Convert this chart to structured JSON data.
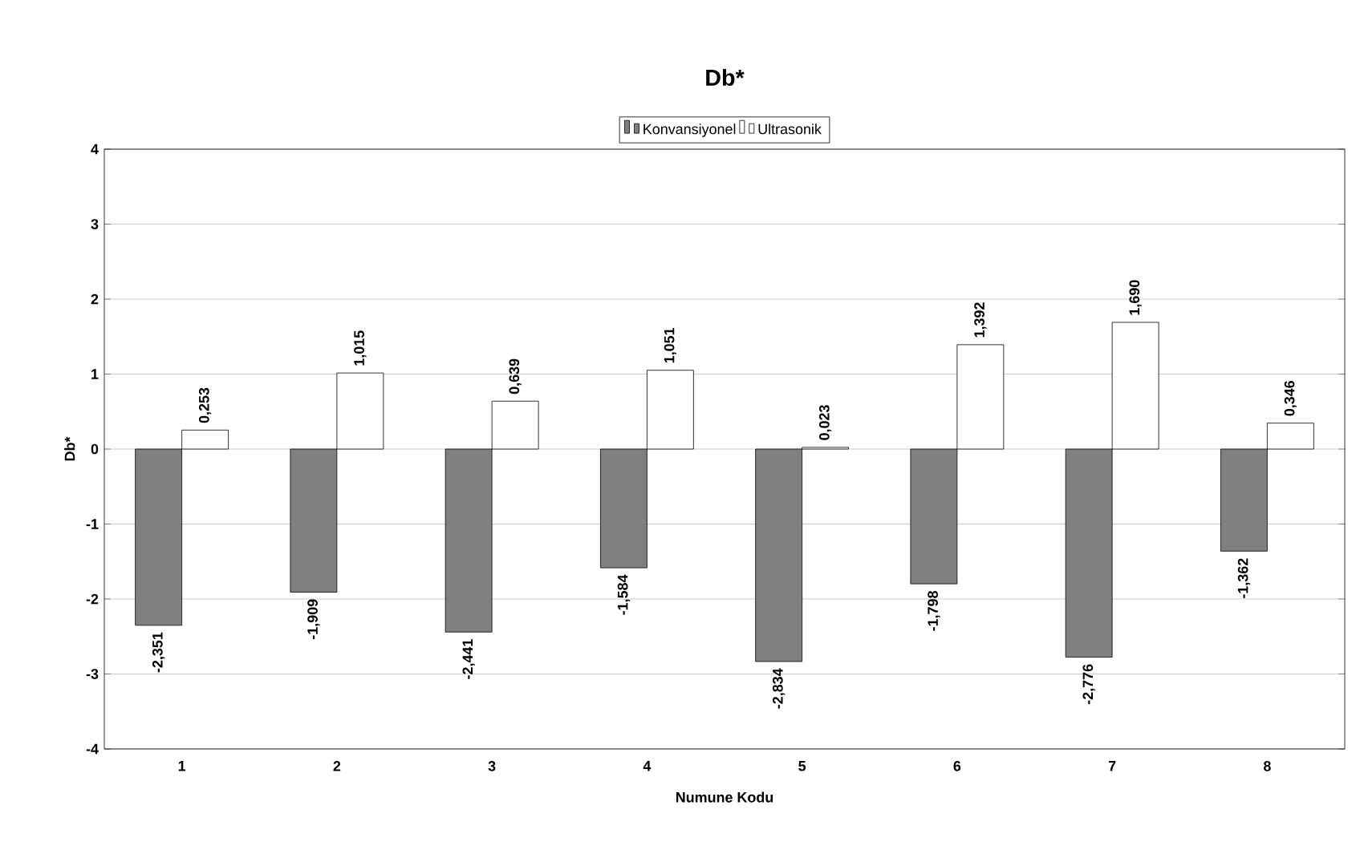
{
  "chart_data": {
    "type": "bar",
    "title": "Db*",
    "xlabel": "Numune Kodu",
    "ylabel": "Db*",
    "categories": [
      "1",
      "2",
      "3",
      "4",
      "5",
      "6",
      "7",
      "8"
    ],
    "series": [
      {
        "name": "Konvansiyonel",
        "color": "#808080",
        "values": [
          -2.351,
          -1.909,
          -2.441,
          -1.584,
          -2.834,
          -1.798,
          -2.776,
          -1.362
        ],
        "value_labels": [
          "-2,351",
          "-1,909",
          "-2,441",
          "-1,584",
          "-2,834",
          "-1,798",
          "-2,776",
          "-1,362"
        ]
      },
      {
        "name": "Ultrasonik",
        "color": "#ffffff",
        "values": [
          0.253,
          1.015,
          0.639,
          1.051,
          0.023,
          1.392,
          1.69,
          0.346
        ],
        "value_labels": [
          "0,253",
          "1,015",
          "0,639",
          "1,051",
          "0,023",
          "1,392",
          "1,690",
          "0,346"
        ]
      }
    ],
    "ylim": [
      -4,
      4
    ],
    "yticks": [
      -4,
      -3,
      -2,
      -1,
      0,
      1,
      2,
      3,
      4
    ],
    "grid": "y",
    "legend": "top"
  }
}
